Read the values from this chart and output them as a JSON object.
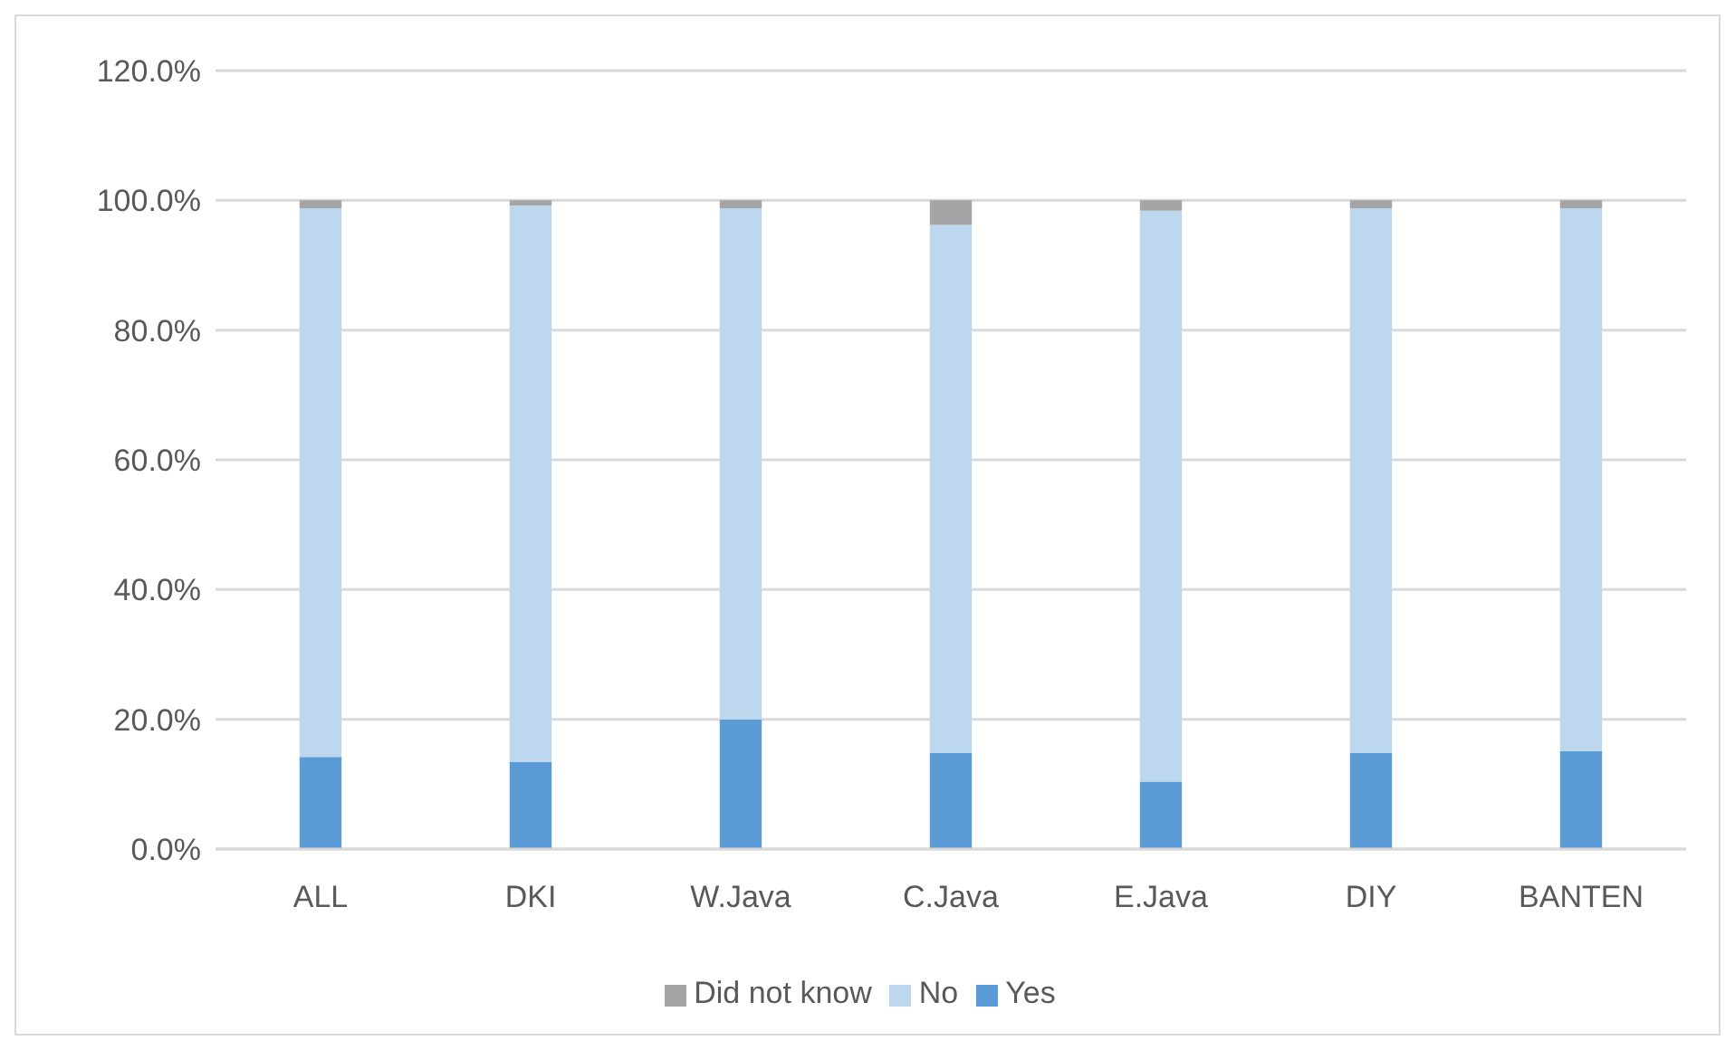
{
  "chart_data": {
    "type": "bar",
    "stacked": true,
    "categories": [
      "ALL",
      "DKI",
      "W.Java",
      "C.Java",
      "E.Java",
      "DIY",
      "BANTEN"
    ],
    "series": [
      {
        "name": "Yes",
        "color": "#5b9bd5",
        "values": [
          14.2,
          13.4,
          20.0,
          14.8,
          10.4,
          14.8,
          15.1
        ]
      },
      {
        "name": "No",
        "color": "#bdd7ee",
        "values": [
          84.6,
          85.8,
          78.8,
          81.4,
          88.0,
          84.0,
          83.7
        ]
      },
      {
        "name": "Did not know",
        "color": "#a5a5a5",
        "values": [
          1.2,
          0.8,
          1.2,
          3.8,
          1.6,
          1.2,
          1.2
        ]
      }
    ],
    "ylim": [
      0,
      120
    ],
    "yticks": [
      {
        "value": 0,
        "label": "0.0%"
      },
      {
        "value": 20,
        "label": "20.0%"
      },
      {
        "value": 40,
        "label": "40.0%"
      },
      {
        "value": 60,
        "label": "60.0%"
      },
      {
        "value": 80,
        "label": "80.0%"
      },
      {
        "value": 100,
        "label": "100.0%"
      },
      {
        "value": 120,
        "label": "120.0%"
      }
    ],
    "grid": "y",
    "legend": "bottom"
  }
}
